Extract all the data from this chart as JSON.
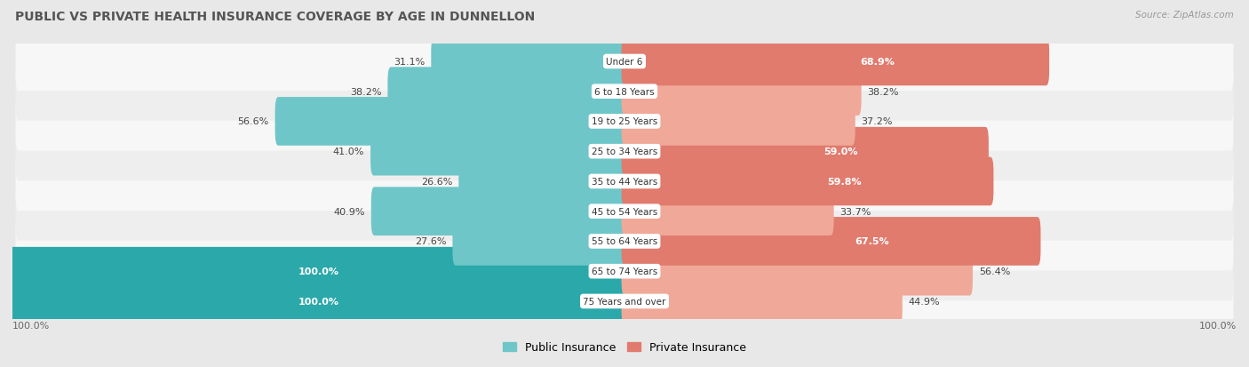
{
  "title": "PUBLIC VS PRIVATE HEALTH INSURANCE COVERAGE BY AGE IN DUNNELLON",
  "source": "Source: ZipAtlas.com",
  "categories": [
    "Under 6",
    "6 to 18 Years",
    "19 to 25 Years",
    "25 to 34 Years",
    "35 to 44 Years",
    "45 to 54 Years",
    "55 to 64 Years",
    "65 to 74 Years",
    "75 Years and over"
  ],
  "public_values": [
    31.1,
    38.2,
    56.6,
    41.0,
    26.6,
    40.9,
    27.6,
    100.0,
    100.0
  ],
  "private_values": [
    68.9,
    38.2,
    37.2,
    59.0,
    59.8,
    33.7,
    67.5,
    56.4,
    44.9
  ],
  "public_color_normal": "#6ec6c8",
  "public_color_full": "#2ba8aa",
  "private_color_strong": "#e07b6e",
  "private_color_weak": "#f0a898",
  "bg_color": "#e8e8e8",
  "row_bg_white": "#f7f7f7",
  "row_bg_gray": "#eeeeee",
  "legend_public": "Public Insurance",
  "legend_private": "Private Insurance",
  "bar_height": 0.62,
  "max_value": 100.0,
  "scale": 100.0
}
